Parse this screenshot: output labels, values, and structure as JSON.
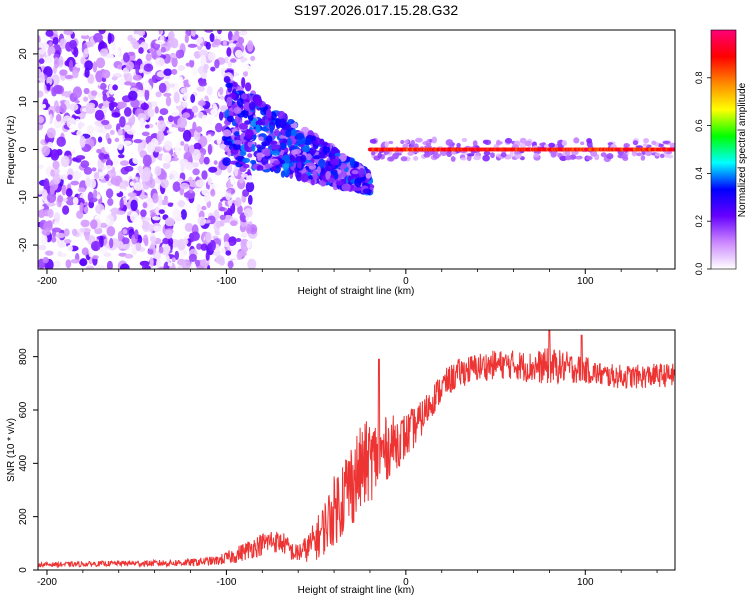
{
  "title": "S197.2026.017.15.28.G32",
  "chart_data": [
    {
      "type": "heatmap",
      "title": "S197.2026.017.15.28.G32",
      "xlabel": "Height of straight line (km)",
      "ylabel": "Frequency (Hz)",
      "xlim": [
        -205,
        150
      ],
      "ylim": [
        -25,
        25
      ],
      "xticks": [
        -200,
        -100,
        0,
        100
      ],
      "yticks": [
        -20,
        -10,
        0,
        10,
        20
      ],
      "colorbar": {
        "label": "Normalized spectral amplitude",
        "range": [
          0,
          1
        ],
        "ticks": [
          0.0,
          0.2,
          0.4,
          0.6,
          0.8
        ],
        "tick_labels": [
          "0.0",
          "0.2",
          "0.4",
          "0.6",
          "0.8"
        ],
        "colors": [
          "#ffffff",
          "#cc88ff",
          "#6600ff",
          "#0000ff",
          "#00ffff",
          "#00ff00",
          "#ffff00",
          "#ff8800",
          "#ff0000",
          "#ff0077"
        ]
      },
      "regions": [
        {
          "x_range": [
            -205,
            -100
          ],
          "freq_range": [
            -25,
            25
          ],
          "amplitude": [
            0.0,
            0.2
          ]
        },
        {
          "x_range": [
            -100,
            -20
          ],
          "freq_center": [
            6,
            -7
          ],
          "amplitude": [
            0.1,
            0.4
          ]
        },
        {
          "x_range": [
            -20,
            150
          ],
          "freq_center": 0,
          "amplitude": [
            0.8,
            0.95
          ]
        }
      ]
    },
    {
      "type": "line",
      "xlabel": "Height of straight line (km)",
      "ylabel": "SNR (10 * v/v)",
      "xlim": [
        -205,
        150
      ],
      "ylim": [
        0,
        900
      ],
      "xticks": [
        -200,
        -100,
        0,
        100
      ],
      "yticks": [
        0,
        200,
        400,
        600,
        800
      ],
      "series": [
        {
          "name": "SNR",
          "color": "#ee3333",
          "x": [
            -205,
            -180,
            -160,
            -140,
            -120,
            -105,
            -95,
            -85,
            -75,
            -68,
            -62,
            -55,
            -48,
            -42,
            -35,
            -28,
            -22,
            -15,
            -8,
            0,
            8,
            15,
            22,
            30,
            40,
            50,
            60,
            70,
            80,
            90,
            100,
            110,
            120,
            130,
            140,
            150
          ],
          "y": [
            20,
            22,
            25,
            25,
            28,
            35,
            55,
            85,
            110,
            100,
            60,
            80,
            130,
            200,
            280,
            350,
            400,
            430,
            470,
            500,
            560,
            640,
            700,
            740,
            760,
            770,
            770,
            760,
            765,
            760,
            750,
            730,
            725,
            725,
            730,
            730
          ],
          "noise_amplitude": [
            8,
            10,
            10,
            12,
            14,
            18,
            30,
            40,
            45,
            40,
            35,
            50,
            90,
            120,
            160,
            170,
            160,
            140,
            110,
            90,
            70,
            60,
            55,
            55,
            55,
            55,
            55,
            60,
            70,
            60,
            50,
            45,
            45,
            45,
            45,
            45
          ],
          "peaks": [
            {
              "x": -15,
              "y": 790
            },
            {
              "x": 80,
              "y": 900
            },
            {
              "x": 98,
              "y": 880
            }
          ]
        }
      ]
    }
  ]
}
